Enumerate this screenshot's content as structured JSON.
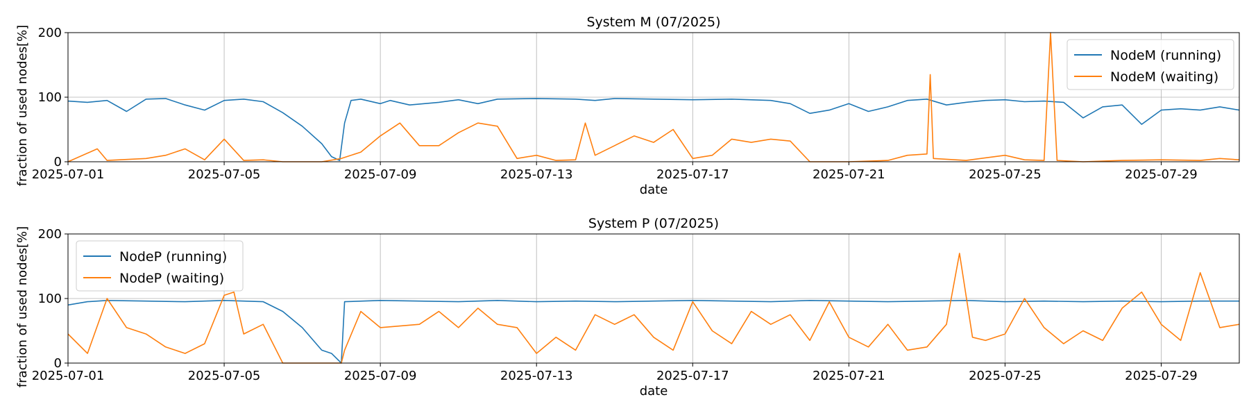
{
  "chart_data": [
    {
      "type": "line",
      "title": "System M (07/2025)",
      "xlabel": "date",
      "ylabel": "fraction of used nodes[%]",
      "x_range": [
        "2025-07-01",
        "2025-07-31"
      ],
      "ylim": [
        0,
        200
      ],
      "yticks": [
        0,
        100,
        200
      ],
      "xticks": [
        "2025-07-01",
        "2025-07-05",
        "2025-07-09",
        "2025-07-13",
        "2025-07-17",
        "2025-07-21",
        "2025-07-25",
        "2025-07-29"
      ],
      "grid": true,
      "legend_position": "top-right",
      "series": [
        {
          "name": "NodeM (running)",
          "color": "#1f77b4",
          "points": [
            [
              "2025-07-01T00",
              94
            ],
            [
              "2025-07-01T12",
              92
            ],
            [
              "2025-07-02T00",
              95
            ],
            [
              "2025-07-02T12",
              78
            ],
            [
              "2025-07-03T00",
              97
            ],
            [
              "2025-07-03T12",
              98
            ],
            [
              "2025-07-04T00",
              88
            ],
            [
              "2025-07-04T12",
              80
            ],
            [
              "2025-07-05T00",
              95
            ],
            [
              "2025-07-05T12",
              97
            ],
            [
              "2025-07-06T00",
              93
            ],
            [
              "2025-07-06T12",
              76
            ],
            [
              "2025-07-07T00",
              55
            ],
            [
              "2025-07-07T12",
              28
            ],
            [
              "2025-07-07T18",
              8
            ],
            [
              "2025-07-07T23",
              2
            ],
            [
              "2025-07-08T02",
              60
            ],
            [
              "2025-07-08T06",
              95
            ],
            [
              "2025-07-08T12",
              97
            ],
            [
              "2025-07-09T00",
              90
            ],
            [
              "2025-07-09T06",
              95
            ],
            [
              "2025-07-09T18",
              88
            ],
            [
              "2025-07-10T12",
              92
            ],
            [
              "2025-07-11T00",
              96
            ],
            [
              "2025-07-11T12",
              90
            ],
            [
              "2025-07-12T00",
              97
            ],
            [
              "2025-07-13T00",
              98
            ],
            [
              "2025-07-14T00",
              97
            ],
            [
              "2025-07-14T12",
              95
            ],
            [
              "2025-07-15T00",
              98
            ],
            [
              "2025-07-16T00",
              97
            ],
            [
              "2025-07-17T00",
              96
            ],
            [
              "2025-07-18T00",
              97
            ],
            [
              "2025-07-19T00",
              95
            ],
            [
              "2025-07-19T12",
              90
            ],
            [
              "2025-07-20T00",
              75
            ],
            [
              "2025-07-20T12",
              80
            ],
            [
              "2025-07-21T00",
              90
            ],
            [
              "2025-07-21T12",
              78
            ],
            [
              "2025-07-22T00",
              85
            ],
            [
              "2025-07-22T12",
              95
            ],
            [
              "2025-07-23T00",
              97
            ],
            [
              "2025-07-23T12",
              88
            ],
            [
              "2025-07-24T00",
              92
            ],
            [
              "2025-07-24T12",
              95
            ],
            [
              "2025-07-25T00",
              96
            ],
            [
              "2025-07-25T12",
              93
            ],
            [
              "2025-07-26T00",
              94
            ],
            [
              "2025-07-26T12",
              92
            ],
            [
              "2025-07-27T00",
              68
            ],
            [
              "2025-07-27T12",
              85
            ],
            [
              "2025-07-28T00",
              88
            ],
            [
              "2025-07-28T12",
              58
            ],
            [
              "2025-07-29T00",
              80
            ],
            [
              "2025-07-29T12",
              82
            ],
            [
              "2025-07-30T00",
              80
            ],
            [
              "2025-07-30T12",
              85
            ],
            [
              "2025-07-31T00",
              80
            ]
          ]
        },
        {
          "name": "NodeM (waiting)",
          "color": "#ff7f0e",
          "points": [
            [
              "2025-07-01T00",
              0
            ],
            [
              "2025-07-01T18",
              20
            ],
            [
              "2025-07-02T00",
              2
            ],
            [
              "2025-07-03T00",
              5
            ],
            [
              "2025-07-03T12",
              10
            ],
            [
              "2025-07-04T00",
              20
            ],
            [
              "2025-07-04T12",
              3
            ],
            [
              "2025-07-05T00",
              35
            ],
            [
              "2025-07-05T12",
              2
            ],
            [
              "2025-07-06T00",
              3
            ],
            [
              "2025-07-06T12",
              0
            ],
            [
              "2025-07-07T12",
              0
            ],
            [
              "2025-07-08T00",
              5
            ],
            [
              "2025-07-08T12",
              15
            ],
            [
              "2025-07-09T00",
              40
            ],
            [
              "2025-07-09T12",
              60
            ],
            [
              "2025-07-10T00",
              25
            ],
            [
              "2025-07-10T12",
              25
            ],
            [
              "2025-07-11T00",
              45
            ],
            [
              "2025-07-11T12",
              60
            ],
            [
              "2025-07-12T00",
              55
            ],
            [
              "2025-07-12T12",
              5
            ],
            [
              "2025-07-13T00",
              10
            ],
            [
              "2025-07-13T12",
              2
            ],
            [
              "2025-07-14T00",
              3
            ],
            [
              "2025-07-14T06",
              60
            ],
            [
              "2025-07-14T12",
              10
            ],
            [
              "2025-07-15T00",
              25
            ],
            [
              "2025-07-15T12",
              40
            ],
            [
              "2025-07-16T00",
              30
            ],
            [
              "2025-07-16T12",
              50
            ],
            [
              "2025-07-17T00",
              5
            ],
            [
              "2025-07-17T12",
              10
            ],
            [
              "2025-07-18T00",
              35
            ],
            [
              "2025-07-18T12",
              30
            ],
            [
              "2025-07-19T00",
              35
            ],
            [
              "2025-07-19T12",
              32
            ],
            [
              "2025-07-20T00",
              0
            ],
            [
              "2025-07-21T00",
              0
            ],
            [
              "2025-07-22T00",
              2
            ],
            [
              "2025-07-22T12",
              10
            ],
            [
              "2025-07-23T00",
              12
            ],
            [
              "2025-07-23T02",
              135
            ],
            [
              "2025-07-23T04",
              5
            ],
            [
              "2025-07-24T00",
              2
            ],
            [
              "2025-07-25T00",
              10
            ],
            [
              "2025-07-25T12",
              3
            ],
            [
              "2025-07-26T00",
              2
            ],
            [
              "2025-07-26T04",
              200
            ],
            [
              "2025-07-26T08",
              2
            ],
            [
              "2025-07-27T00",
              0
            ],
            [
              "2025-07-28T00",
              2
            ],
            [
              "2025-07-29T00",
              3
            ],
            [
              "2025-07-30T00",
              2
            ],
            [
              "2025-07-30T12",
              5
            ],
            [
              "2025-07-31T00",
              3
            ]
          ]
        }
      ]
    },
    {
      "type": "line",
      "title": "System P (07/2025)",
      "xlabel": "date",
      "ylabel": "fraction of used nodes[%]",
      "x_range": [
        "2025-07-01",
        "2025-07-31"
      ],
      "ylim": [
        0,
        200
      ],
      "yticks": [
        0,
        100,
        200
      ],
      "xticks": [
        "2025-07-01",
        "2025-07-05",
        "2025-07-09",
        "2025-07-13",
        "2025-07-17",
        "2025-07-21",
        "2025-07-25",
        "2025-07-29"
      ],
      "grid": true,
      "legend_position": "top-left",
      "series": [
        {
          "name": "NodeP (running)",
          "color": "#1f77b4",
          "points": [
            [
              "2025-07-01T00",
              90
            ],
            [
              "2025-07-01T12",
              95
            ],
            [
              "2025-07-02T00",
              97
            ],
            [
              "2025-07-03T00",
              96
            ],
            [
              "2025-07-04T00",
              95
            ],
            [
              "2025-07-05T00",
              97
            ],
            [
              "2025-07-05T12",
              96
            ],
            [
              "2025-07-06T00",
              95
            ],
            [
              "2025-07-06T12",
              80
            ],
            [
              "2025-07-07T00",
              55
            ],
            [
              "2025-07-07T12",
              20
            ],
            [
              "2025-07-07T18",
              15
            ],
            [
              "2025-07-08T00",
              0
            ],
            [
              "2025-07-08T02",
              95
            ],
            [
              "2025-07-09T00",
              97
            ],
            [
              "2025-07-10T00",
              96
            ],
            [
              "2025-07-11T00",
              95
            ],
            [
              "2025-07-12T00",
              97
            ],
            [
              "2025-07-13T00",
              95
            ],
            [
              "2025-07-14T00",
              96
            ],
            [
              "2025-07-15T00",
              95
            ],
            [
              "2025-07-16T00",
              96
            ],
            [
              "2025-07-17T00",
              97
            ],
            [
              "2025-07-18T00",
              96
            ],
            [
              "2025-07-19T00",
              95
            ],
            [
              "2025-07-20T00",
              97
            ],
            [
              "2025-07-21T00",
              96
            ],
            [
              "2025-07-22T00",
              95
            ],
            [
              "2025-07-23T00",
              96
            ],
            [
              "2025-07-24T00",
              97
            ],
            [
              "2025-07-25T00",
              95
            ],
            [
              "2025-07-26T00",
              96
            ],
            [
              "2025-07-27T00",
              95
            ],
            [
              "2025-07-28T00",
              96
            ],
            [
              "2025-07-29T00",
              95
            ],
            [
              "2025-07-30T00",
              96
            ],
            [
              "2025-07-31T00",
              96
            ]
          ]
        },
        {
          "name": "NodeP (waiting)",
          "color": "#ff7f0e",
          "points": [
            [
              "2025-07-01T00",
              45
            ],
            [
              "2025-07-01T12",
              15
            ],
            [
              "2025-07-02T00",
              100
            ],
            [
              "2025-07-02T12",
              55
            ],
            [
              "2025-07-03T00",
              45
            ],
            [
              "2025-07-03T12",
              25
            ],
            [
              "2025-07-04T00",
              15
            ],
            [
              "2025-07-04T12",
              30
            ],
            [
              "2025-07-05T00",
              105
            ],
            [
              "2025-07-05T06",
              110
            ],
            [
              "2025-07-05T12",
              45
            ],
            [
              "2025-07-06T00",
              60
            ],
            [
              "2025-07-06T12",
              0
            ],
            [
              "2025-07-07T12",
              0
            ],
            [
              "2025-07-08T00",
              0
            ],
            [
              "2025-07-08T02",
              20
            ],
            [
              "2025-07-08T12",
              80
            ],
            [
              "2025-07-09T00",
              55
            ],
            [
              "2025-07-10T00",
              60
            ],
            [
              "2025-07-10T12",
              80
            ],
            [
              "2025-07-11T00",
              55
            ],
            [
              "2025-07-11T12",
              85
            ],
            [
              "2025-07-12T00",
              60
            ],
            [
              "2025-07-12T12",
              55
            ],
            [
              "2025-07-13T00",
              15
            ],
            [
              "2025-07-13T12",
              40
            ],
            [
              "2025-07-14T00",
              20
            ],
            [
              "2025-07-14T12",
              75
            ],
            [
              "2025-07-15T00",
              60
            ],
            [
              "2025-07-15T12",
              75
            ],
            [
              "2025-07-16T00",
              40
            ],
            [
              "2025-07-16T12",
              20
            ],
            [
              "2025-07-17T00",
              95
            ],
            [
              "2025-07-17T12",
              50
            ],
            [
              "2025-07-18T00",
              30
            ],
            [
              "2025-07-18T12",
              80
            ],
            [
              "2025-07-19T00",
              60
            ],
            [
              "2025-07-19T12",
              75
            ],
            [
              "2025-07-20T00",
              35
            ],
            [
              "2025-07-20T12",
              95
            ],
            [
              "2025-07-21T00",
              40
            ],
            [
              "2025-07-21T12",
              25
            ],
            [
              "2025-07-22T00",
              60
            ],
            [
              "2025-07-22T12",
              20
            ],
            [
              "2025-07-23T00",
              25
            ],
            [
              "2025-07-23T12",
              60
            ],
            [
              "2025-07-23T20",
              170
            ],
            [
              "2025-07-24T04",
              40
            ],
            [
              "2025-07-24T12",
              35
            ],
            [
              "2025-07-25T00",
              45
            ],
            [
              "2025-07-25T12",
              100
            ],
            [
              "2025-07-26T00",
              55
            ],
            [
              "2025-07-26T12",
              30
            ],
            [
              "2025-07-27T00",
              50
            ],
            [
              "2025-07-27T12",
              35
            ],
            [
              "2025-07-28T00",
              85
            ],
            [
              "2025-07-28T12",
              110
            ],
            [
              "2025-07-29T00",
              60
            ],
            [
              "2025-07-29T12",
              35
            ],
            [
              "2025-07-30T00",
              140
            ],
            [
              "2025-07-30T12",
              55
            ],
            [
              "2025-07-31T00",
              60
            ]
          ]
        }
      ]
    }
  ]
}
